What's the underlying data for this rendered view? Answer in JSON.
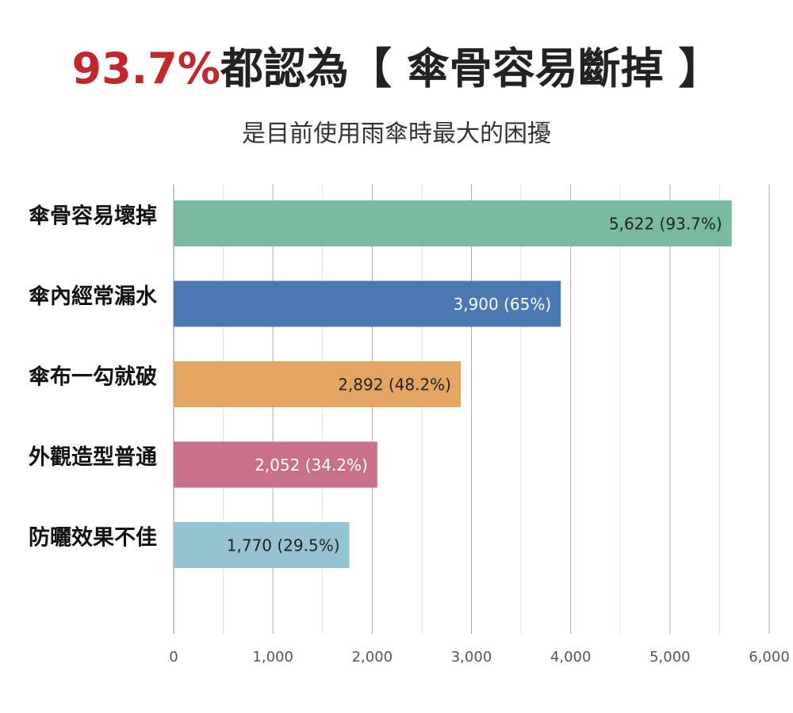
{
  "chart_data": {
    "type": "hbar",
    "title_highlight": "93.7%",
    "title": "都認為【 傘骨容易斷掉 】",
    "subtitle": "是目前使用雨傘時最大的困擾",
    "categories": [
      "傘骨容易壞掉",
      "傘內經常漏水",
      "傘布一勾就破",
      "外觀造型普通",
      "防曬效果不佳"
    ],
    "values": [
      5622,
      3900,
      2892,
      2052,
      1770
    ],
    "value_labels": [
      "5,622 (93.7%)",
      "3,900 (65%)",
      "2,892 (48.2%)",
      "2,052 (34.2%)",
      "1,770 (29.5%)"
    ],
    "colors": [
      "#7ab8a0",
      "#4a78b0",
      "#e3a662",
      "#c9718a",
      "#96c3d4"
    ],
    "title_highlight_color": "#c1272d",
    "xlim": [
      0,
      6000
    ],
    "xticks": [
      0,
      {
        "value": 1000,
        "label": "1,000"
      },
      {
        "value": 2000,
        "label": "2,000"
      },
      {
        "value": 3000,
        "label": "3,000"
      },
      {
        "value": 4000,
        "label": "4,000"
      },
      {
        "value": 5000,
        "label": "5,000"
      },
      {
        "value": 6000,
        "label": "6,000"
      }
    ],
    "minor_xticks": [
      500,
      1500,
      2500,
      3500,
      4500,
      5500
    ],
    "grid": true
  }
}
